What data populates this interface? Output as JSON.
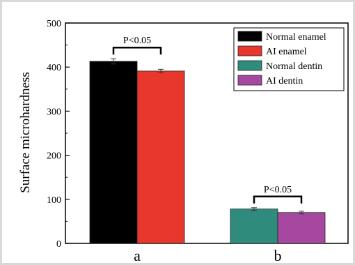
{
  "chart_data": {
    "type": "bar",
    "title": "",
    "xlabel": "",
    "ylabel": "Surface microhardness",
    "categories": [
      "a",
      "b"
    ],
    "ylim": [
      0,
      500
    ],
    "yticks": [
      0,
      100,
      200,
      300,
      400,
      500
    ],
    "grid": false,
    "legend_position": "top-right",
    "series": [
      {
        "name": "Normal enamel",
        "color": "#000000",
        "values": [
          413,
          null
        ],
        "errors": [
          6,
          null
        ]
      },
      {
        "name": "AI enamel",
        "color": "#e8372d",
        "values": [
          391,
          null
        ],
        "errors": [
          4,
          null
        ]
      },
      {
        "name": "Normal dentin",
        "color": "#2f8c7d",
        "values": [
          null,
          78
        ],
        "errors": [
          null,
          3
        ]
      },
      {
        "name": "AI dentin",
        "color": "#a748a0",
        "values": [
          null,
          70
        ],
        "errors": [
          null,
          3
        ]
      }
    ],
    "annotations": [
      {
        "text": "P<0.05",
        "category": "a"
      },
      {
        "text": "P<0.05",
        "category": "b"
      }
    ]
  }
}
